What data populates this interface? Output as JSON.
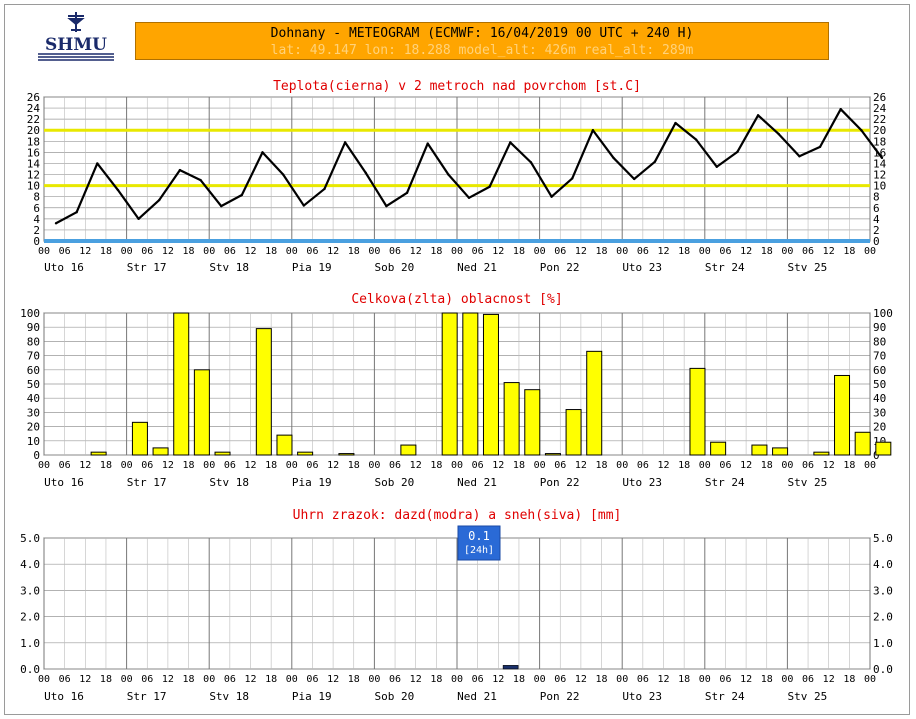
{
  "header": {
    "logo_text": "SHMU",
    "title": "Dohnany - METEOGRAM (ECMWF: 16/04/2019 00 UTC + 240 H)",
    "subtitle": "lat: 49.147  lon: 18.288  model_alt: 426m  real_alt: 289m"
  },
  "colors": {
    "header_bg": "#ffa500",
    "title_red": "#e00000",
    "grid": "#999999",
    "temp_line": "#000000",
    "temp_ref_line": "#e8e800",
    "cloud_bar": "#ffff00",
    "zero_line": "#4aa0e0",
    "rain_box": "#2a6ad6",
    "rain_bar": "#1a2f6a"
  },
  "hour_ticks": [
    "00",
    "06",
    "12",
    "18"
  ],
  "day_labels": [
    "Uto 16",
    "Str 17",
    "Stv 18",
    "Pia 19",
    "Sob 20",
    "Ned 21",
    "Pon 22",
    "Uto 23",
    "Str 24",
    "Stv 25"
  ],
  "chart_data": [
    {
      "type": "line",
      "title": "Teplota(cierna) v 2 metroch nad povrchom [st.C]",
      "ylim": [
        0,
        26
      ],
      "yticks": [
        0,
        2,
        4,
        6,
        8,
        10,
        12,
        14,
        16,
        18,
        20,
        22,
        24,
        26
      ],
      "reference_lines": [
        10,
        20
      ],
      "x_step_hours": 6,
      "series": [
        {
          "values": [
            3.2,
            5.2,
            14,
            9.2,
            4,
            7.4,
            12.8,
            11,
            6.3,
            8.3,
            16,
            12,
            6.4,
            9.4,
            17.8,
            12.3,
            6.3,
            8.7,
            17.6,
            12,
            7.8,
            9.8,
            17.8,
            14.2,
            8,
            11.3,
            20,
            15,
            11.2,
            14.3,
            21.3,
            18.3,
            13.4,
            16.1,
            22.7,
            19.3,
            15.3,
            17,
            23.8,
            20,
            15
          ]
        }
      ]
    },
    {
      "type": "bar",
      "title": "Celkova(zlta) oblacnost [%]",
      "ylim": [
        0,
        100
      ],
      "yticks": [
        0,
        10,
        20,
        30,
        40,
        50,
        60,
        70,
        80,
        90,
        100
      ],
      "x_step_hours": 6,
      "series": [
        {
          "values": [
            0,
            0,
            2,
            0,
            23,
            5,
            100,
            60,
            2,
            0,
            89,
            14,
            2,
            0,
            1,
            0,
            0,
            7,
            0,
            100,
            100,
            99,
            51,
            46,
            1,
            32,
            73,
            0,
            0,
            0,
            0,
            61,
            9,
            0,
            7,
            5,
            0,
            2,
            56,
            16,
            9
          ]
        }
      ]
    },
    {
      "type": "bar",
      "title": "Uhrn zrazok: dazd(modra) a sneh(siva) [mm]",
      "ylim": [
        0,
        5
      ],
      "yticks": [
        "0.0",
        "1.0",
        "2.0",
        "3.0",
        "4.0",
        "5.0"
      ],
      "x_step_hours": 6,
      "series": [
        {
          "values": [
            0,
            0,
            0,
            0,
            0,
            0,
            0,
            0,
            0,
            0,
            0,
            0,
            0,
            0,
            0,
            0,
            0,
            0,
            0,
            0,
            0,
            0,
            0.1,
            0,
            0,
            0,
            0,
            0,
            0,
            0,
            0,
            0,
            0,
            0,
            0,
            0,
            0,
            0,
            0,
            0,
            0
          ]
        }
      ],
      "annotations": [
        {
          "value": "0.1",
          "label": "[24h]"
        }
      ]
    }
  ]
}
